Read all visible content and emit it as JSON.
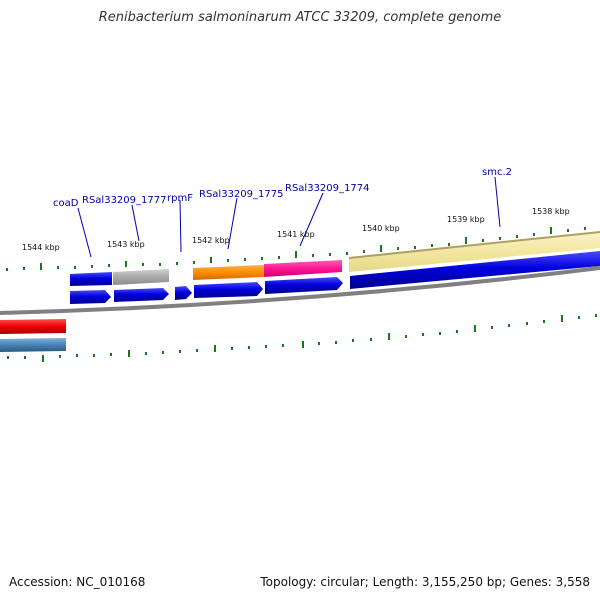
{
  "map": {
    "title": "Renibacterium salmoninarum ATCC 33209, complete genome",
    "accession_label": "Accession: NC_010168",
    "summary_label": "Topology: circular; Length: 3,155,250 bp; Genes: 3,558",
    "kbp_labels": [
      "1544 kbp",
      "1543 kbp",
      "1542 kbp",
      "1541 kbp",
      "1540 kbp",
      "1539 kbp",
      "1538 kbp"
    ],
    "genes": [
      "coaD",
      "RSal33209_1777",
      "rpmF",
      "RSal33209_1775",
      "RSal33209_1774",
      "smc.2"
    ]
  },
  "colors": {
    "label_blue": "#0000aa",
    "cds_blue": "#0000dd",
    "tick_green": "#1a7a1a",
    "backbone_gray": "#808080",
    "orange": "#ff8c00",
    "magenta": "#ff1493",
    "khaki": "#f3e6a0",
    "red": "#ee0000",
    "steel_blue": "#4682b4",
    "gray_feature": "#a9a9a9"
  }
}
